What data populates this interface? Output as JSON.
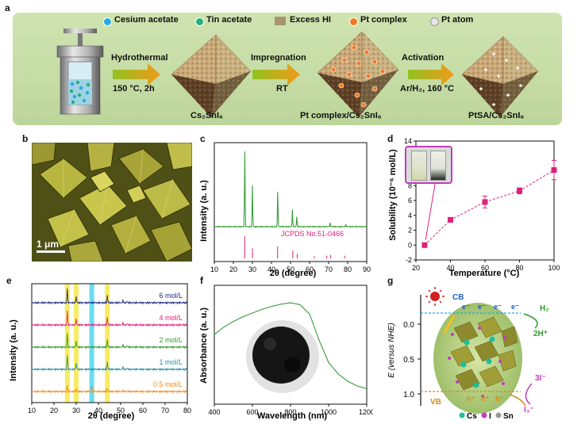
{
  "panels": {
    "a": "a",
    "b": "b",
    "c": "c",
    "d": "d",
    "e": "e",
    "f": "f",
    "g": "g"
  },
  "panel_a": {
    "legend": [
      {
        "label": "Cesium acetate",
        "color": "#29a8e0"
      },
      {
        "label": "Tin acetate",
        "color": "#21b07a"
      },
      {
        "label": "Excess HI",
        "color": "#a99472"
      },
      {
        "label": "Pt complex",
        "color": "#f07a24"
      },
      {
        "label": "Pt atom",
        "color": "#e6e6e6"
      }
    ],
    "steps": [
      {
        "top": "Hydrothermal",
        "bottom": "150 °C, 2h"
      },
      {
        "top": "Impregnation",
        "bottom": "RT"
      },
      {
        "top": "Activation",
        "bottom": "Ar/H₂, 160 °C"
      }
    ],
    "products": [
      "Cs₂SnI₆",
      "Pt complex/Cs₂SnI₆",
      "PtSA/Cs₂SnI₆"
    ]
  },
  "panel_b": {
    "scale_bar": "1 μm"
  },
  "chart_data": [
    {
      "id": "c",
      "type": "line",
      "xlabel": "2θ (degree)",
      "ylabel": "Intensity (a. u.)",
      "xlim": [
        10,
        90
      ],
      "xticks": [
        10,
        20,
        30,
        40,
        50,
        60,
        70,
        80,
        90
      ],
      "reference_label": "JCPDS No.51-0466",
      "peaks": [
        {
          "x": 26.0,
          "h": 1.0
        },
        {
          "x": 30.0,
          "h": 0.55
        },
        {
          "x": 43.3,
          "h": 0.48
        },
        {
          "x": 51.0,
          "h": 0.22
        },
        {
          "x": 53.3,
          "h": 0.14
        },
        {
          "x": 70.8,
          "h": 0.05
        },
        {
          "x": 79.0,
          "h": 0.03
        }
      ],
      "reference_peaks": [
        {
          "x": 26.0,
          "h": 1.0
        },
        {
          "x": 30.0,
          "h": 0.45
        },
        {
          "x": 43.2,
          "h": 0.55
        },
        {
          "x": 51.2,
          "h": 0.35
        },
        {
          "x": 53.5,
          "h": 0.2
        },
        {
          "x": 62.5,
          "h": 0.1
        },
        {
          "x": 69.0,
          "h": 0.12
        },
        {
          "x": 71.0,
          "h": 0.15
        },
        {
          "x": 78.5,
          "h": 0.12
        }
      ],
      "series_color": "#2f9a2f",
      "reference_color": "#e0217a"
    },
    {
      "id": "d",
      "type": "scatter",
      "xlabel": "Temperature (°C)",
      "ylabel": "Solubility (10⁻⁶ mol/L)",
      "xlim": [
        20,
        100
      ],
      "ylim": [
        -2,
        14
      ],
      "xticks": [
        20,
        40,
        60,
        80,
        100
      ],
      "yticks": [
        -2,
        0,
        2,
        4,
        6,
        8,
        10,
        12,
        14
      ],
      "x": [
        25,
        40,
        60,
        80,
        100
      ],
      "y": [
        0,
        3.4,
        5.8,
        7.3,
        10.1
      ],
      "err": [
        0.3,
        0.3,
        0.8,
        0.4,
        1.3
      ],
      "color": "#e0217a"
    },
    {
      "id": "e",
      "type": "line",
      "xlabel": "2θ (degree)",
      "ylabel": "Intensity (a. u.)",
      "xlim": [
        10,
        80
      ],
      "xticks": [
        10,
        20,
        30,
        40,
        50,
        60,
        70,
        80
      ],
      "highlights": [
        {
          "x": 26,
          "color": "#f5e84a"
        },
        {
          "x": 30,
          "color": "#f5e84a"
        },
        {
          "x": 37,
          "color": "#4fd6ef"
        },
        {
          "x": 44,
          "color": "#f5e84a"
        }
      ],
      "series": [
        {
          "name": "6 mol/L",
          "color": "#1f2a7a"
        },
        {
          "name": "4 mol/L",
          "color": "#e0217a"
        },
        {
          "name": "2 mol/L",
          "color": "#2f9a2f"
        },
        {
          "name": "1 mol/L",
          "color": "#2a8a9a"
        },
        {
          "name": "0.5 mol/L",
          "color": "#f08a1c"
        }
      ]
    },
    {
      "id": "f",
      "type": "line",
      "xlabel": "Wavelength (nm)",
      "ylabel": "Absorbance (a. u.)",
      "xlim": [
        400,
        1200
      ],
      "xticks": [
        400,
        600,
        800,
        1000,
        1200
      ],
      "x": [
        400,
        450,
        500,
        550,
        600,
        650,
        700,
        750,
        800,
        850,
        900,
        950,
        1000,
        1050,
        1100,
        1150,
        1200
      ],
      "y": [
        0.66,
        0.74,
        0.8,
        0.85,
        0.89,
        0.93,
        0.96,
        0.985,
        1.0,
        0.98,
        0.88,
        0.6,
        0.36,
        0.24,
        0.16,
        0.11,
        0.08
      ],
      "color": "#46a046"
    }
  ],
  "panel_g": {
    "ylabel": "E (versus NHE)",
    "yticks": [
      "0.0",
      "0.5",
      "1.0"
    ],
    "cb": "CB",
    "vb": "VB",
    "electron": "e⁻",
    "hole": "h⁺",
    "h2": "H₂",
    "h_plus": "2H⁺",
    "iodide": "3I⁻",
    "triiodide": "I₃⁻",
    "legend": [
      {
        "label": "Cs",
        "color": "#1dbf9a"
      },
      {
        "label": "I",
        "color": "#c23cc2"
      },
      {
        "label": "Sn",
        "color": "#9a9a9a"
      }
    ]
  }
}
